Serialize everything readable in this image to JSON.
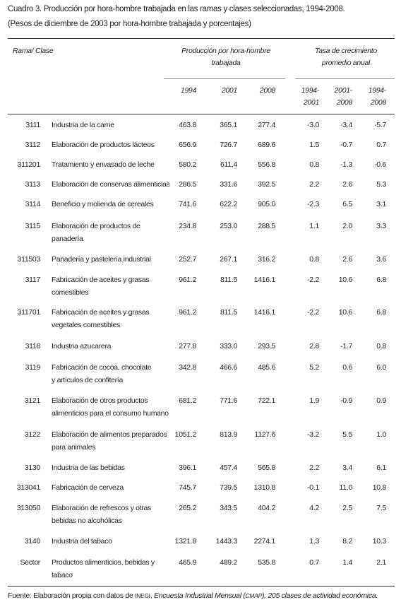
{
  "title": {
    "line1": "Cuadro 3. Producción por hora-hombre trabajada en las ramas y clases seleccionadas, 1994-2008.",
    "line2": "(Pesos de diciembre de 2003 por hora-hombre trabajada y porcentajes)"
  },
  "table": {
    "header": {
      "rama": "Rama/ Clase",
      "group1": [
        "Producción por hora-hombre",
        "trabajada"
      ],
      "group2": [
        "Tasa de crecimiento",
        "promedio anual"
      ],
      "columns": [
        [
          "1994"
        ],
        [
          "2001"
        ],
        [
          "2008"
        ],
        [
          "1994-",
          "2001"
        ],
        [
          "2001-",
          "2008"
        ],
        [
          "1994-",
          "2008"
        ]
      ]
    },
    "rows": [
      {
        "code": "3111",
        "name": [
          "Industria de la carne"
        ],
        "values": [
          "463.8",
          "365.1",
          "277.4",
          "-3.0",
          "-3.4",
          "-5.7"
        ]
      },
      {
        "code": "3112",
        "name": [
          "Elaboración de productos lácteos"
        ],
        "values": [
          "656.9",
          "726.7",
          "689.6",
          "1.5",
          "-0.7",
          "0.7"
        ]
      },
      {
        "code": "311201",
        "name": [
          "Tratamiento y envasado de leche"
        ],
        "values": [
          "580.2",
          "611.4",
          "556.8",
          "0.8",
          "-1.3",
          "-0.6"
        ]
      },
      {
        "code": "3113",
        "name": [
          "Elaboración de conservas alimenticias"
        ],
        "values": [
          "286.5",
          "331.6",
          "392.5",
          "2.2",
          "2.6",
          "5.3"
        ]
      },
      {
        "code": "3114",
        "name": [
          "Beneficio y molienda de cereales"
        ],
        "values": [
          "741.6",
          "622.2",
          "905.0",
          "-2.3",
          "6.5",
          "3.1"
        ]
      },
      {
        "code": "3115",
        "name": [
          "Elaboración de productos de",
          "panadería"
        ],
        "values": [
          "234.8",
          "253.0",
          "288.5",
          "1.1",
          "2.0",
          "3.3"
        ]
      },
      {
        "code": "311503",
        "name": [
          "Panadería y pastelería industrial"
        ],
        "values": [
          "252.7",
          "267.1",
          "316.2",
          "0.8",
          "2.6",
          "3.6"
        ]
      },
      {
        "code": "3117",
        "name": [
          "Fabricación de aceites y grasas",
          "comestibles"
        ],
        "values": [
          "961.2",
          "811.5",
          "1416.1",
          "-2.2",
          "10.6",
          "6.8"
        ]
      },
      {
        "code": "311701",
        "name": [
          "Fabricación de aceites y grasas",
          "vegetales comestibles"
        ],
        "values": [
          "961.2",
          "811.5",
          "1416.1",
          "-2.2",
          "10.6",
          "6.8"
        ]
      },
      {
        "code": "3118",
        "name": [
          "Industria azucarera"
        ],
        "values": [
          "277.8",
          "333.0",
          "293.5",
          "2.8",
          "-1.7",
          "0.8"
        ]
      },
      {
        "code": "3119",
        "name": [
          "Fabricación de cocoa, chocolate",
          "y artículos de confitería"
        ],
        "values": [
          "342.8",
          "466.6",
          "485.6",
          "5.2",
          "0.6",
          "6.0"
        ]
      },
      {
        "code": "3121",
        "name": [
          "Elaboración de otros productos",
          "alimenticios para el consumo humano"
        ],
        "values": [
          "681.2",
          "771.6",
          "722.1",
          "1.9",
          "-0.9",
          "0.9"
        ]
      },
      {
        "code": "3122",
        "name": [
          "Elaboración de alimentos preparados",
          "para animales"
        ],
        "values": [
          "1051.2",
          "813.9",
          "1127.6",
          "-3.2",
          "5.5",
          "1.0"
        ]
      },
      {
        "code": "3130",
        "name": [
          "Industria de las bebidas"
        ],
        "values": [
          "396.1",
          "457.4",
          "565.8",
          "2.2",
          "3.4",
          "6.1"
        ]
      },
      {
        "code": "313041",
        "name": [
          "Fabricación de cerveza"
        ],
        "values": [
          "745.7",
          "739.5",
          "1310.8",
          "-0.1",
          "11.0",
          "10.8"
        ]
      },
      {
        "code": "313050",
        "name": [
          "Elaboración de refrescos y otras",
          "bebidas no alcohólicas"
        ],
        "values": [
          "265.2",
          "343.5",
          "404.2",
          "4.2",
          "2.5",
          "7.5"
        ]
      },
      {
        "code": "3140",
        "name": [
          "Industria del tabaco"
        ],
        "values": [
          "1321.8",
          "1443.3",
          "2274.1",
          "1.3",
          "8.2",
          "10.3"
        ]
      },
      {
        "code": "Sector",
        "name": [
          "Productos alimenticios, bebidas y",
          "tabaco"
        ],
        "values": [
          "465.9",
          "489.2",
          "535.8",
          "0.7",
          "1.4",
          "2.1"
        ]
      }
    ]
  },
  "footnote": [
    "Fuente: Elaboración propia con datos de ",
    "INEGI",
    ", ",
    "Encuesta Industrial Mensual (",
    "CMAP",
    "), 205 clases de actividad económica."
  ]
}
